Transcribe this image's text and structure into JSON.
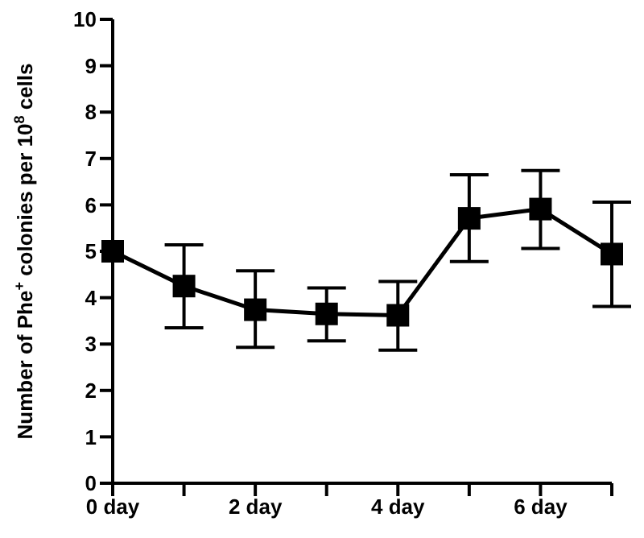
{
  "chart_data": {
    "type": "line",
    "ylabel": "Number of Phe$^{+}$ colonies per 10$^{8}$ cells",
    "x": [
      0,
      1,
      2,
      3,
      4,
      5,
      6,
      7
    ],
    "values": [
      5.0,
      4.25,
      3.74,
      3.65,
      3.62,
      5.71,
      5.91,
      4.94
    ],
    "errors": [
      null,
      [
        3.35,
        5.14
      ],
      [
        2.93,
        4.58
      ],
      [
        3.07,
        4.21
      ],
      [
        2.87,
        4.35
      ],
      [
        4.78,
        6.65
      ],
      [
        5.06,
        6.74
      ],
      [
        3.81,
        6.06
      ]
    ],
    "color": "#000000",
    "marker": "square",
    "line_style": "solid",
    "grid": false,
    "legend": false,
    "xlim": [
      0,
      7
    ],
    "xticks": [
      {
        "value": 0,
        "label": "0 day"
      },
      {
        "value": 1,
        "label": null
      },
      {
        "value": 2,
        "label": "2 day"
      },
      {
        "value": 3,
        "label": null
      },
      {
        "value": 4,
        "label": "4 day"
      },
      {
        "value": 5,
        "label": null
      },
      {
        "value": 6,
        "label": "6 day"
      },
      {
        "value": 7,
        "label": null
      }
    ],
    "ylim": [
      0,
      10
    ],
    "yticks": [
      0,
      1,
      2,
      3,
      4,
      5,
      6,
      7,
      8,
      9,
      10
    ]
  }
}
